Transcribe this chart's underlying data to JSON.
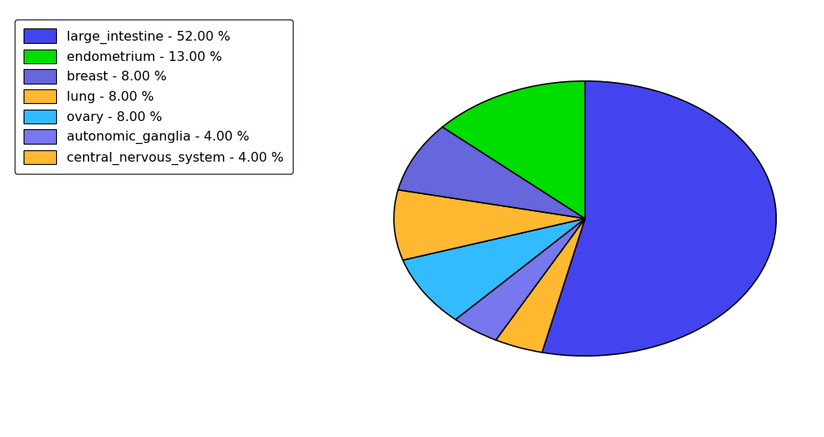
{
  "labels": [
    "large_intestine",
    "central_nervous_system",
    "autonomic_ganglia",
    "ovary",
    "lung",
    "breast",
    "endometrium"
  ],
  "values": [
    52.0,
    4.0,
    4.0,
    8.0,
    8.0,
    8.0,
    13.0
  ],
  "colors": [
    "#4444ee",
    "#ffb830",
    "#7777ee",
    "#33bbff",
    "#ffb830",
    "#6666dd",
    "#00dd00"
  ],
  "legend_labels": [
    "large_intestine - 52.00 %",
    "endometrium - 13.00 %",
    "breast - 8.00 %",
    "lung - 8.00 %",
    "ovary - 8.00 %",
    "autonomic_ganglia - 4.00 %",
    "central_nervous_system - 4.00 %"
  ],
  "legend_colors": [
    "#4444ee",
    "#00dd00",
    "#6666dd",
    "#ffb830",
    "#33bbff",
    "#7777ee",
    "#ffb830"
  ],
  "background_color": "#ffffff",
  "figsize": [
    10.13,
    5.38
  ],
  "dpi": 100,
  "startangle": 90,
  "aspect_ratio": 0.72
}
